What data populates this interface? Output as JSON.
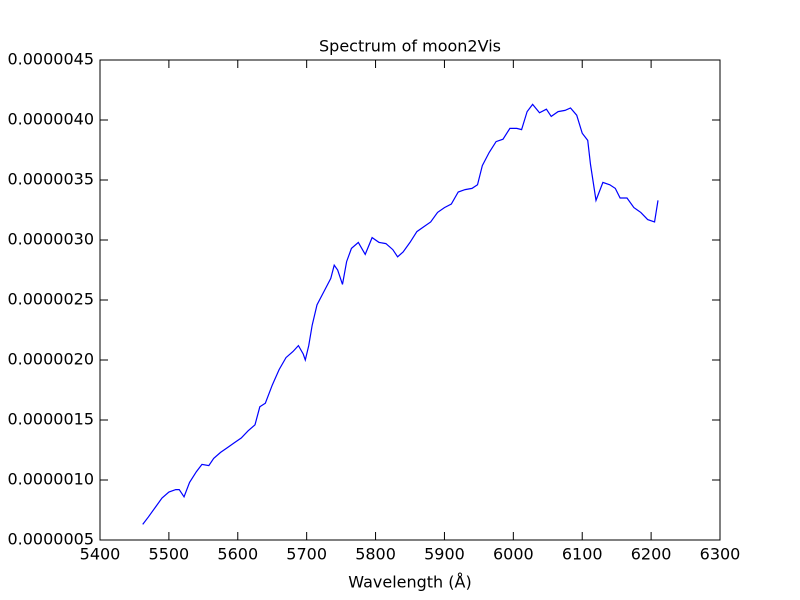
{
  "chart_data": {
    "type": "line",
    "title": "Spectrum of moon2Vis",
    "x_label": "Wavelength (Å)",
    "x": [
      5462,
      5470,
      5480,
      5490,
      5500,
      5510,
      5515,
      5522,
      5530,
      5540,
      5548,
      5558,
      5565,
      5575,
      5585,
      5595,
      5605,
      5615,
      5625,
      5632,
      5640,
      5650,
      5660,
      5670,
      5680,
      5688,
      5695,
      5698,
      5703,
      5708,
      5715,
      5725,
      5735,
      5740,
      5745,
      5752,
      5758,
      5765,
      5775,
      5785,
      5795,
      5805,
      5815,
      5825,
      5832,
      5840,
      5850,
      5860,
      5870,
      5880,
      5890,
      5900,
      5910,
      5920,
      5930,
      5940,
      5948,
      5955,
      5965,
      5975,
      5985,
      5995,
      6005,
      6012,
      6020,
      6028,
      6038,
      6048,
      6055,
      6065,
      6075,
      6083,
      6092,
      6100,
      6108,
      6112,
      6120,
      6130,
      6140,
      6148,
      6155,
      6165,
      6175,
      6185,
      6195,
      6205,
      6210
    ],
    "series": [
      {
        "name": "moon2Vis",
        "color": "#0000ff",
        "values": [
          6.3e-07,
          6.9e-07,
          7.7e-07,
          8.5e-07,
          9e-07,
          9.2e-07,
          9.2e-07,
          8.6e-07,
          9.8e-07,
          1.07e-06,
          1.13e-06,
          1.12e-06,
          1.18e-06,
          1.23e-06,
          1.27e-06,
          1.31e-06,
          1.35e-06,
          1.41e-06,
          1.46e-06,
          1.61e-06,
          1.64e-06,
          1.79e-06,
          1.92e-06,
          2.02e-06,
          2.07e-06,
          2.12e-06,
          2.05e-06,
          2e-06,
          2.12e-06,
          2.29e-06,
          2.46e-06,
          2.57e-06,
          2.68e-06,
          2.79e-06,
          2.75e-06,
          2.63e-06,
          2.82e-06,
          2.93e-06,
          2.98e-06,
          2.88e-06,
          3.02e-06,
          2.98e-06,
          2.97e-06,
          2.92e-06,
          2.86e-06,
          2.9e-06,
          2.98e-06,
          3.07e-06,
          3.11e-06,
          3.15e-06,
          3.23e-06,
          3.27e-06,
          3.3e-06,
          3.4e-06,
          3.42e-06,
          3.43e-06,
          3.46e-06,
          3.62e-06,
          3.73e-06,
          3.82e-06,
          3.84e-06,
          3.93e-06,
          3.93e-06,
          3.92e-06,
          4.07e-06,
          4.13e-06,
          4.06e-06,
          4.09e-06,
          4.03e-06,
          4.07e-06,
          4.08e-06,
          4.1e-06,
          4.04e-06,
          3.89e-06,
          3.83e-06,
          3.63e-06,
          3.33e-06,
          3.48e-06,
          3.46e-06,
          3.43e-06,
          3.35e-06,
          3.35e-06,
          3.27e-06,
          3.23e-06,
          3.17e-06,
          3.15e-06,
          3.33e-06
        ]
      }
    ],
    "xlim": [
      5400,
      6300
    ],
    "xticks": [
      5400,
      5500,
      5600,
      5700,
      5800,
      5900,
      6000,
      6100,
      6200,
      6300
    ],
    "ylim": [
      5e-07,
      4.5e-06
    ],
    "yticks": [
      {
        "value": 5e-07,
        "label": "0.0000005"
      },
      {
        "value": 1e-06,
        "label": "0.0000010"
      },
      {
        "value": 1.5e-06,
        "label": "0.0000015"
      },
      {
        "value": 2e-06,
        "label": "0.0000020"
      },
      {
        "value": 2.5e-06,
        "label": "0.0000025"
      },
      {
        "value": 3e-06,
        "label": "0.0000030"
      },
      {
        "value": 3.5e-06,
        "label": "0.0000035"
      },
      {
        "value": 4e-06,
        "label": "0.0000040"
      },
      {
        "value": 4.5e-06,
        "label": "0.0000045"
      }
    ]
  }
}
